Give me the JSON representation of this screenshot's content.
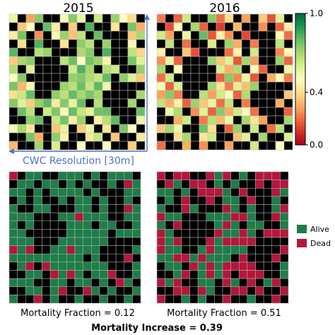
{
  "chart_data": [
    {
      "type": "heatmap",
      "title": "2015",
      "grid_size": 16,
      "colorscale": "red-yellow-green",
      "background": "#000000",
      "values": [
        [
          0.55,
          0.7,
          0.28,
          0.75,
          0.48,
          0.2,
          0.52,
          0.75,
          0.55,
          0.78,
          0.62,
          0.2,
          0.72,
          0.5,
          0.4,
          0.65
        ],
        [
          0.75,
          0.35,
          0.5,
          0.65,
          0.8,
          0.44,
          0.67,
          0.36,
          0.71,
          0.83,
          0.55,
          0.73,
          0.42,
          0.58,
          0.77,
          0.3
        ],
        [
          0.44,
          0.77,
          0.62,
          0.25,
          0.7,
          0.53,
          0.72,
          0.34,
          0.65,
          0.32,
          0.8,
          0.47,
          0.62,
          0.75,
          0.35,
          0.69
        ],
        [
          0.63,
          0.4,
          0.75,
          0.83,
          0.55,
          0.68,
          0.41,
          0.78,
          0.74,
          0.66,
          0.44,
          0.72,
          0.5,
          0.62,
          0.48,
          0.81
        ],
        [
          0.82,
          0.58,
          0.3,
          0.67,
          0.72,
          0.37,
          0.81,
          0.55,
          0.69,
          0.75,
          0.58,
          0.83,
          0.41,
          0.7,
          0.65,
          0.38
        ],
        [
          0.36,
          0.7,
          0.74,
          0.45,
          0.6,
          0.78,
          0.66,
          0.79,
          0.5,
          0.78,
          0.72,
          0.46,
          0.75,
          0.38,
          0.77,
          0.58
        ],
        [
          0.68,
          0.41,
          0.59,
          0.79,
          0.34,
          0.65,
          0.7,
          0.62,
          0.83,
          0.7,
          0.76,
          0.67,
          0.62,
          0.68,
          0.45,
          0.73
        ],
        [
          0.51,
          0.75,
          0.66,
          0.36,
          0.77,
          0.46,
          0.84,
          0.73,
          0.76,
          0.68,
          0.63,
          0.8,
          0.51,
          0.74,
          0.59,
          0.35
        ],
        [
          0.77,
          0.32,
          0.48,
          0.7,
          0.59,
          0.81,
          0.72,
          0.66,
          0.79,
          0.64,
          0.81,
          0.55,
          0.7,
          0.48,
          0.76,
          0.62
        ],
        [
          0.4,
          0.63,
          0.8,
          0.55,
          0.49,
          0.74,
          0.66,
          0.8,
          0.7,
          0.77,
          0.7,
          0.73,
          0.66,
          0.8,
          0.38,
          0.7
        ],
        [
          0.75,
          0.58,
          0.36,
          0.73,
          0.81,
          0.43,
          0.75,
          0.57,
          0.8,
          0.73,
          0.67,
          0.6,
          0.75,
          0.58,
          0.71,
          0.45
        ],
        [
          0.47,
          0.79,
          0.66,
          0.34,
          0.62,
          0.76,
          0.52,
          0.8,
          0.64,
          0.58,
          0.78,
          0.79,
          0.52,
          0.74,
          0.47,
          0.79
        ],
        [
          0.8,
          0.38,
          0.74,
          0.8,
          0.48,
          0.63,
          0.78,
          0.44,
          0.72,
          0.81,
          0.45,
          0.66,
          0.81,
          0.36,
          0.72,
          0.55
        ],
        [
          0.52,
          0.7,
          0.42,
          0.58,
          0.79,
          0.35,
          0.57,
          0.74,
          0.36,
          0.55,
          0.73,
          0.42,
          0.62,
          0.77,
          0.49,
          0.76
        ],
        [
          0.69,
          0.44,
          0.77,
          0.3,
          0.56,
          0.74,
          0.46,
          0.62,
          0.79,
          0.43,
          0.64,
          0.78,
          0.35,
          0.53,
          0.8,
          0.43
        ],
        [
          0.32,
          0.73,
          0.55,
          0.71,
          0.4,
          0.6,
          0.78,
          0.34,
          0.49,
          0.72,
          0.39,
          0.5,
          0.76,
          0.44,
          0.36,
          0.66
        ]
      ],
      "dead_mask": [
        [
          0,
          1,
          0,
          0,
          1,
          1,
          0,
          0,
          0,
          1,
          0,
          1,
          0,
          0,
          0,
          1
        ],
        [
          1,
          0,
          0,
          1,
          0,
          0,
          1,
          0,
          1,
          0,
          1,
          1,
          0,
          1,
          0,
          0
        ],
        [
          0,
          0,
          1,
          0,
          1,
          0,
          0,
          0,
          0,
          1,
          0,
          1,
          1,
          1,
          0,
          0
        ],
        [
          1,
          0,
          1,
          0,
          1,
          1,
          0,
          1,
          0,
          0,
          1,
          0,
          1,
          1,
          0,
          1
        ],
        [
          0,
          1,
          1,
          0,
          0,
          1,
          1,
          1,
          0,
          0,
          1,
          0,
          1,
          1,
          0,
          0
        ],
        [
          0,
          0,
          0,
          1,
          1,
          1,
          0,
          0,
          0,
          0,
          0,
          0,
          1,
          1,
          0,
          0
        ],
        [
          0,
          1,
          0,
          1,
          1,
          1,
          1,
          0,
          0,
          0,
          1,
          0,
          0,
          1,
          1,
          0
        ],
        [
          0,
          0,
          1,
          1,
          1,
          1,
          1,
          0,
          0,
          0,
          0,
          0,
          1,
          0,
          0,
          0
        ],
        [
          0,
          0,
          0,
          1,
          1,
          1,
          0,
          0,
          0,
          0,
          0,
          0,
          1,
          1,
          1,
          1
        ],
        [
          0,
          0,
          0,
          1,
          1,
          0,
          0,
          0,
          0,
          0,
          0,
          1,
          1,
          1,
          1,
          0
        ],
        [
          0,
          0,
          0,
          0,
          0,
          0,
          0,
          0,
          0,
          1,
          0,
          1,
          1,
          1,
          0,
          1
        ],
        [
          1,
          0,
          0,
          1,
          0,
          0,
          0,
          0,
          0,
          0,
          0,
          0,
          1,
          1,
          1,
          0
        ],
        [
          1,
          1,
          0,
          0,
          1,
          0,
          0,
          0,
          0,
          1,
          0,
          0,
          0,
          1,
          1,
          0
        ],
        [
          0,
          0,
          0,
          1,
          1,
          0,
          0,
          1,
          0,
          0,
          1,
          0,
          1,
          0,
          0,
          1
        ],
        [
          1,
          1,
          0,
          0,
          1,
          0,
          0,
          1,
          1,
          0,
          0,
          1,
          0,
          1,
          1,
          0
        ],
        [
          0,
          1,
          1,
          0,
          1,
          0,
          1,
          1,
          0,
          1,
          1,
          0,
          1,
          1,
          0,
          1
        ]
      ]
    },
    {
      "type": "heatmap",
      "title": "2016",
      "grid_size": 16,
      "colorscale": "red-yellow-green",
      "background": "#000000",
      "values": [
        [
          0.22,
          0.55,
          0.18,
          0.62,
          0.12,
          0.3,
          0.75,
          0.2,
          0.4,
          0.78,
          0.28,
          0.55,
          0.35,
          0.15,
          0.58,
          0.7
        ],
        [
          0.3,
          0.15,
          0.48,
          0.25,
          0.7,
          0.18,
          0.42,
          0.12,
          0.55,
          0.32,
          0.2,
          0.78,
          0.25,
          0.62,
          0.18,
          0.45
        ],
        [
          0.62,
          0.28,
          0.12,
          0.55,
          0.22,
          0.8,
          0.16,
          0.45,
          0.25,
          0.62,
          0.14,
          0.38,
          0.7,
          0.28,
          0.52,
          0.2
        ],
        [
          0.18,
          0.65,
          0.38,
          0.2,
          0.48,
          0.25,
          0.6,
          0.18,
          0.72,
          0.3,
          0.55,
          0.22,
          0.42,
          0.15,
          0.65,
          0.32
        ],
        [
          0.45,
          0.22,
          0.7,
          0.35,
          0.15,
          0.52,
          0.28,
          0.8,
          0.2,
          0.45,
          0.18,
          0.62,
          0.26,
          0.58,
          0.24,
          0.48
        ],
        [
          0.25,
          0.55,
          0.18,
          0.62,
          0.4,
          0.2,
          0.72,
          0.35,
          0.58,
          0.16,
          0.7,
          0.28,
          0.52,
          0.2,
          0.72,
          0.18
        ],
        [
          0.7,
          0.3,
          0.48,
          0.15,
          0.68,
          0.38,
          0.22,
          0.6,
          0.3,
          0.68,
          0.25,
          0.48,
          0.18,
          0.78,
          0.35,
          0.55
        ],
        [
          0.2,
          0.62,
          0.25,
          0.72,
          0.28,
          0.62,
          0.45,
          0.18,
          0.75,
          0.24,
          0.55,
          0.16,
          0.65,
          0.3,
          0.48,
          0.22
        ],
        [
          0.52,
          0.18,
          0.6,
          0.32,
          0.55,
          0.16,
          0.7,
          0.42,
          0.22,
          0.58,
          0.34,
          0.72,
          0.22,
          0.55,
          0.2,
          0.62
        ],
        [
          0.28,
          0.75,
          0.22,
          0.5,
          0.2,
          0.66,
          0.28,
          0.62,
          0.5,
          0.18,
          0.68,
          0.3,
          0.58,
          0.25,
          0.7,
          0.35
        ],
        [
          0.65,
          0.3,
          0.45,
          0.18,
          0.72,
          0.35,
          0.55,
          0.2,
          0.65,
          0.4,
          0.22,
          0.62,
          0.18,
          0.68,
          0.3,
          0.52
        ],
        [
          0.22,
          0.55,
          0.68,
          0.4,
          0.25,
          0.58,
          0.18,
          0.75,
          0.3,
          0.62,
          0.48,
          0.2,
          0.72,
          0.35,
          0.6,
          0.18
        ],
        [
          0.58,
          0.2,
          0.3,
          0.62,
          0.48,
          0.22,
          0.66,
          0.32,
          0.55,
          0.2,
          0.7,
          0.42,
          0.28,
          0.55,
          0.22,
          0.7
        ],
        [
          0.35,
          0.7,
          0.55,
          0.22,
          0.6,
          0.78,
          0.4,
          0.58,
          0.18,
          0.72,
          0.26,
          0.62,
          0.5,
          0.2,
          0.66,
          0.4
        ],
        [
          0.62,
          0.24,
          0.4,
          0.7,
          0.18,
          0.42,
          0.62,
          0.22,
          0.66,
          0.34,
          0.58,
          0.18,
          0.7,
          0.45,
          0.28,
          0.58
        ],
        [
          0.2,
          0.52,
          0.72,
          0.3,
          0.55,
          0.25,
          0.48,
          0.7,
          0.28,
          0.55,
          0.2,
          0.62,
          0.35,
          0.68,
          0.5,
          0.25
        ]
      ],
      "dead_mask": [
        [
          0,
          1,
          0,
          0,
          1,
          1,
          0,
          0,
          0,
          1,
          0,
          1,
          0,
          0,
          0,
          1
        ],
        [
          1,
          0,
          0,
          1,
          0,
          0,
          1,
          0,
          1,
          0,
          1,
          1,
          0,
          1,
          0,
          0
        ],
        [
          0,
          0,
          1,
          0,
          1,
          0,
          0,
          0,
          0,
          1,
          0,
          1,
          1,
          1,
          0,
          0
        ],
        [
          1,
          0,
          1,
          0,
          1,
          1,
          0,
          1,
          0,
          0,
          1,
          0,
          1,
          1,
          0,
          1
        ],
        [
          0,
          1,
          1,
          0,
          0,
          1,
          1,
          1,
          0,
          0,
          1,
          0,
          1,
          1,
          0,
          0
        ],
        [
          0,
          0,
          0,
          1,
          1,
          1,
          0,
          0,
          0,
          0,
          0,
          0,
          1,
          1,
          0,
          0
        ],
        [
          0,
          1,
          0,
          1,
          1,
          1,
          1,
          0,
          0,
          0,
          1,
          0,
          0,
          1,
          1,
          0
        ],
        [
          0,
          0,
          1,
          1,
          1,
          1,
          1,
          0,
          0,
          0,
          0,
          0,
          1,
          0,
          0,
          0
        ],
        [
          0,
          0,
          0,
          1,
          1,
          1,
          0,
          0,
          0,
          0,
          0,
          0,
          1,
          1,
          1,
          1
        ],
        [
          0,
          0,
          0,
          1,
          1,
          0,
          0,
          0,
          0,
          0,
          0,
          1,
          1,
          1,
          1,
          0
        ],
        [
          0,
          0,
          0,
          0,
          0,
          0,
          0,
          0,
          0,
          1,
          0,
          1,
          1,
          1,
          0,
          1
        ],
        [
          1,
          0,
          0,
          1,
          0,
          0,
          0,
          0,
          0,
          0,
          0,
          0,
          1,
          1,
          1,
          0
        ],
        [
          1,
          1,
          0,
          0,
          1,
          0,
          0,
          0,
          0,
          1,
          0,
          0,
          0,
          1,
          1,
          0
        ],
        [
          0,
          0,
          0,
          1,
          1,
          0,
          0,
          1,
          0,
          0,
          1,
          0,
          1,
          0,
          0,
          1
        ],
        [
          1,
          1,
          0,
          0,
          1,
          0,
          0,
          1,
          1,
          0,
          0,
          1,
          0,
          1,
          1,
          0
        ],
        [
          0,
          1,
          1,
          0,
          1,
          0,
          1,
          1,
          0,
          1,
          1,
          0,
          1,
          1,
          0,
          1
        ]
      ]
    },
    {
      "type": "heatmap",
      "title": "",
      "grid_size": 16,
      "categories": [
        "Alive",
        "Dead"
      ],
      "colors": {
        "Alive": "#1e7d48",
        "Dead": "#b5163b",
        "empty": "#000000"
      },
      "mortality_fraction": 0.12,
      "seed": 7
    },
    {
      "type": "heatmap",
      "title": "",
      "grid_size": 16,
      "categories": [
        "Alive",
        "Dead"
      ],
      "colors": {
        "Alive": "#1e7d48",
        "Dead": "#b5163b",
        "empty": "#000000"
      },
      "mortality_fraction": 0.51,
      "seed": 11
    }
  ],
  "titles": {
    "left": "2015",
    "right": "2016"
  },
  "colorbar": {
    "ticks": [
      "1.0",
      "0.4",
      "0.0"
    ],
    "tick_values": [
      1.0,
      0.4,
      0.0
    ],
    "colormap": [
      "#a50026",
      "#d73027",
      "#f46d43",
      "#fdae61",
      "#fee08b",
      "#ffffbf",
      "#d9ef8b",
      "#a6d96a",
      "#66bd63",
      "#1a9850",
      "#006837"
    ]
  },
  "annotation": {
    "text": "CWC Resolution [30m]",
    "color": "#4a76c0"
  },
  "legend": {
    "items": [
      {
        "label": "Alive",
        "color": "#1e7d48"
      },
      {
        "label": "Dead",
        "color": "#b5163b"
      }
    ]
  },
  "footer": {
    "left_caption": "Mortality Fraction = 0.12",
    "right_caption": "Mortality Fraction = 0.51",
    "summary": "Mortality Increase = 0.39"
  }
}
